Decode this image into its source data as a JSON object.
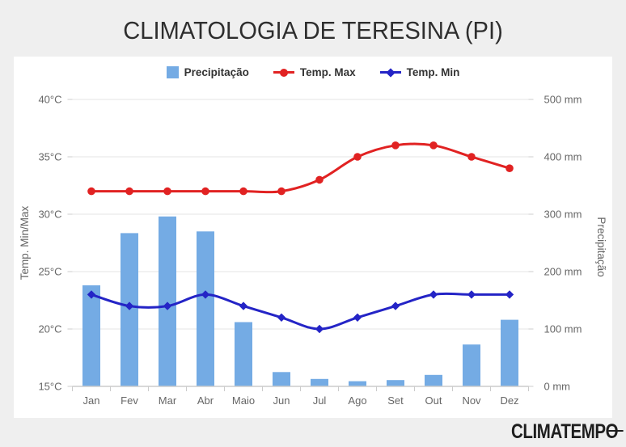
{
  "page": {
    "title": "CLIMATOLOGIA DE TERESINA (PI)",
    "brand": "CLIMATEMPO"
  },
  "colors": {
    "background": "#efefef",
    "panel": "#ffffff",
    "title": "#2e2e2e",
    "legend_text": "#333333",
    "bar": "#74abe4",
    "temp_max": "#e12222",
    "temp_min": "#2424c6",
    "grid": "#e6e6e6",
    "axis_line": "#cccccc",
    "axis_label": "#666666"
  },
  "legend": {
    "items": [
      {
        "label": "Precipitação",
        "marker": "square",
        "series": "Precipitação"
      },
      {
        "label": "Temp. Max",
        "marker": "line-circle",
        "series": "Temp. Max"
      },
      {
        "label": "Temp. Min",
        "marker": "line-diamond",
        "series": "Temp. Min"
      }
    ]
  },
  "chart_data": {
    "type": "combo-bar-line",
    "categories": [
      "Jan",
      "Fev",
      "Mar",
      "Abr",
      "Maio",
      "Jun",
      "Jul",
      "Ago",
      "Set",
      "Out",
      "Nov",
      "Dez"
    ],
    "series": [
      {
        "name": "Precipitação",
        "type": "bar",
        "axis": "right",
        "unit": "mm",
        "values": [
          176,
          267,
          296,
          270,
          112,
          25,
          13,
          9,
          11,
          20,
          73,
          116
        ]
      },
      {
        "name": "Temp. Max",
        "type": "line",
        "marker": "circle",
        "axis": "left",
        "unit": "°C",
        "values": [
          32,
          32,
          32,
          32,
          32,
          32,
          33,
          35,
          36,
          36,
          35,
          34
        ]
      },
      {
        "name": "Temp. Min",
        "type": "line",
        "marker": "diamond",
        "axis": "left",
        "unit": "°C",
        "values": [
          23,
          22,
          22,
          23,
          22,
          21,
          20,
          21,
          22,
          23,
          23,
          23
        ]
      }
    ],
    "left_axis": {
      "title": "Temp. Min/Max",
      "min": 15,
      "max": 40,
      "step": 5,
      "tick_labels": [
        "40°C",
        "35°C",
        "30°C",
        "25°C",
        "20°C",
        "15°C"
      ]
    },
    "right_axis": {
      "title": "Precipitação",
      "min": 0,
      "max": 500,
      "step": 100,
      "tick_labels": [
        "500 mm",
        "400 mm",
        "300 mm",
        "200 mm",
        "100 mm",
        "0 mm"
      ]
    },
    "grid": true,
    "legend_position": "top"
  }
}
